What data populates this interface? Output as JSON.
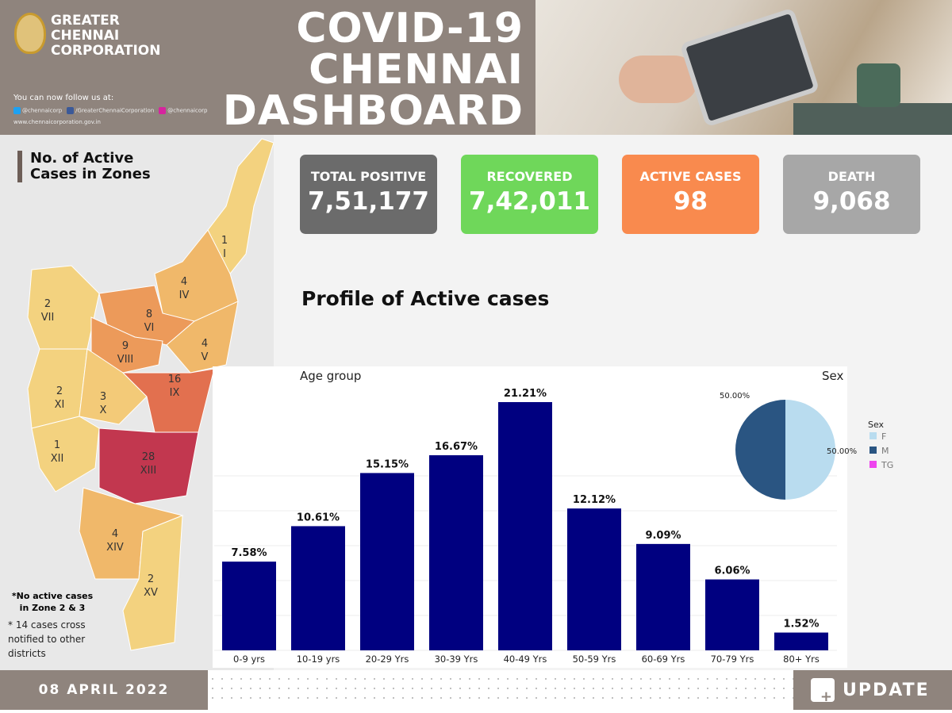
{
  "header": {
    "org_name": [
      "GREATER",
      "CHENNAI",
      "CORPORATION"
    ],
    "follow_text": "You can now follow us at:",
    "twitter": "@chennaicorp",
    "facebook": "/GreaterChennaiCorporation",
    "instagram": "@chennaicorp",
    "website": "www.chennaicorporation.gov.in",
    "title": [
      "COVID-19",
      "CHENNAI",
      "DASHBOARD"
    ]
  },
  "map": {
    "title": "No. of Active Cases in Zones",
    "zones": [
      {
        "count": "1",
        "roman": "I",
        "color": "#f3d27f"
      },
      {
        "count": "4",
        "roman": "IV",
        "color": "#f0b86a"
      },
      {
        "count": "2",
        "roman": "VII",
        "color": "#f3d27f"
      },
      {
        "count": "8",
        "roman": "VI",
        "color": "#ec9a5a"
      },
      {
        "count": "9",
        "roman": "VIII",
        "color": "#ec9a5a"
      },
      {
        "count": "4",
        "roman": "V",
        "color": "#f0b86a"
      },
      {
        "count": "2",
        "roman": "XI",
        "color": "#f3d27f"
      },
      {
        "count": "3",
        "roman": "X",
        "color": "#f3ca78"
      },
      {
        "count": "16",
        "roman": "IX",
        "color": "#e2704f"
      },
      {
        "count": "1",
        "roman": "XII",
        "color": "#f3d27f"
      },
      {
        "count": "28",
        "roman": "XIII",
        "color": "#c2374f"
      },
      {
        "count": "4",
        "roman": "XIV",
        "color": "#f0b86a"
      },
      {
        "count": "2",
        "roman": "XV",
        "color": "#f3d27f"
      }
    ],
    "note1": "*No active cases in Zone 2 & 3",
    "note2": [
      "* 14  cases cross",
      "notified to other",
      "districts"
    ]
  },
  "cards": [
    {
      "label": "TOTAL POSITIVE",
      "value": "7,51,177",
      "color": "#6b6b6b"
    },
    {
      "label": "RECOVERED",
      "value": "7,42,011",
      "color": "#6fd75a"
    },
    {
      "label": "ACTIVE CASES",
      "value": "98",
      "color": "#f98a4e"
    },
    {
      "label": "DEATH",
      "value": "9,068",
      "color": "#a7a7a7"
    }
  ],
  "profile_title": "Profile of Active cases",
  "chart_data": [
    {
      "type": "bar",
      "title": "Age group",
      "categories": [
        "0-9 yrs",
        "10-19 yrs",
        "20-29 Yrs",
        "30-39 Yrs",
        "40-49 Yrs",
        "50-59 Yrs",
        "60-69 Yrs",
        "70-79 Yrs",
        "80+ Yrs"
      ],
      "values": [
        7.58,
        10.61,
        15.15,
        16.67,
        21.21,
        12.12,
        9.09,
        6.06,
        1.52
      ],
      "labels": [
        "7.58%",
        "10.61%",
        "15.15%",
        "16.67%",
        "21.21%",
        "12.12%",
        "9.09%",
        "6.06%",
        "1.52%"
      ],
      "color": "#000080",
      "ylim": [
        0,
        24
      ]
    },
    {
      "type": "pie",
      "title": "Sex",
      "legend_title": "Sex",
      "categories": [
        "F",
        "M",
        "TG"
      ],
      "values": [
        50,
        50,
        0
      ],
      "labels": [
        "50.00%",
        "50.00%",
        ""
      ],
      "colors": [
        "#b9dcef",
        "#2a5582",
        "#ee44ee"
      ]
    }
  ],
  "footer": {
    "date": "08 APRIL 2022",
    "update": "UPDATE"
  }
}
